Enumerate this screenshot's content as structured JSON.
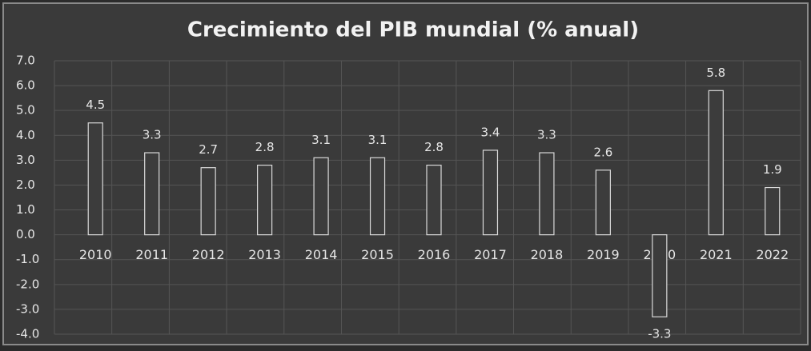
{
  "chart_data": {
    "type": "bar",
    "title": "Crecimiento del PIB mundial (% anual)",
    "categories": [
      "2010",
      "2011",
      "2012",
      "2013",
      "2014",
      "2015",
      "2016",
      "2017",
      "2018",
      "2019",
      "2020",
      "2021",
      "2022"
    ],
    "values": [
      4.5,
      3.3,
      2.7,
      2.8,
      3.1,
      3.1,
      2.8,
      3.4,
      3.3,
      2.6,
      -3.3,
      5.8,
      1.9
    ],
    "color": "#3c3c3c",
    "ylim": [
      -4,
      7
    ],
    "yticks": [
      {
        "value": -4,
        "label": "-4.0"
      },
      {
        "value": -3,
        "label": "-3.0"
      },
      {
        "value": -2,
        "label": "-2.0"
      },
      {
        "value": -1,
        "label": "-1.0"
      },
      {
        "value": 0,
        "label": "0.0"
      },
      {
        "value": 1,
        "label": "1.0"
      },
      {
        "value": 2,
        "label": "2.0"
      },
      {
        "value": 3,
        "label": "3.0"
      },
      {
        "value": 4,
        "label": "4.0"
      },
      {
        "value": 5,
        "label": "5.0"
      },
      {
        "value": 6,
        "label": "6.0"
      },
      {
        "value": 7,
        "label": "7.0"
      }
    ],
    "grid": true
  }
}
